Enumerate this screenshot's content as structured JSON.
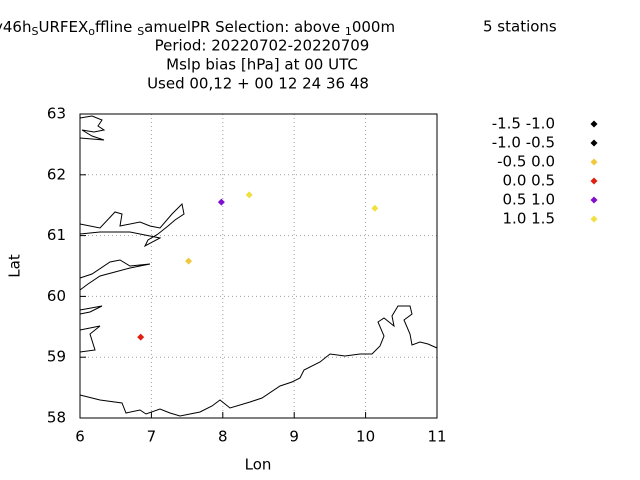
{
  "chart_data": {
    "type": "scatter",
    "title_parts": [
      {
        "text": "y46h"
      },
      {
        "text": "S",
        "sub": true
      },
      {
        "text": "URFEX"
      },
      {
        "text": "o",
        "sub": true
      },
      {
        "text": "ffline "
      },
      {
        "text": "S",
        "sub": true
      },
      {
        "text": "amuelPR   Selection: above "
      },
      {
        "text": "1",
        "sub": true
      },
      {
        "text": "000m"
      }
    ],
    "stations": "5 stations",
    "subtitle": [
      "Period: 20220702-20220709",
      "Mslp bias [hPa] at  00 UTC",
      "Used  00,12  + 00 12 24 36 48"
    ],
    "xlabel": "Lon",
    "ylabel": "Lat",
    "xlim": [
      6,
      11
    ],
    "ylim": [
      58,
      63
    ],
    "xticks": [
      6,
      7,
      8,
      9,
      10,
      11
    ],
    "yticks": [
      58,
      59,
      60,
      61,
      62,
      63
    ],
    "grid": true,
    "series": [
      {
        "name": "-1.5 -1.0",
        "color": "#000000",
        "x": [],
        "values": []
      },
      {
        "name": "-1.0 -0.5",
        "color": "#000000",
        "x": [],
        "values": []
      },
      {
        "name": "-0.5 0.0",
        "color": "#f0c840",
        "x": [
          7.52
        ],
        "values": [
          60.58
        ]
      },
      {
        "name": "0.0 0.5",
        "color": "#e02010",
        "x": [
          6.85
        ],
        "values": [
          59.33
        ]
      },
      {
        "name": "0.5 1.0",
        "color": "#8010d0",
        "x": [
          7.98
        ],
        "values": [
          61.55
        ]
      },
      {
        "name": "1.0 1.5",
        "color": "#f0e040",
        "x": [
          8.37,
          10.13
        ],
        "values": [
          61.67,
          61.45
        ]
      }
    ]
  }
}
